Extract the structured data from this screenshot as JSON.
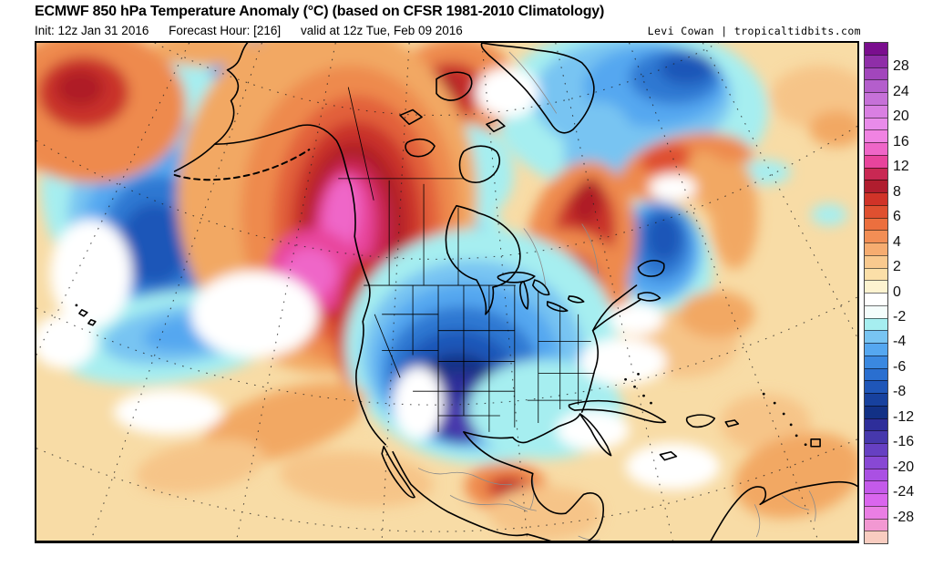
{
  "header": {
    "title": "ECMWF 850 hPa Temperature Anomaly (°C) (based on CFSR 1981-2010 Climatology)",
    "init": "Init: 12z Jan 31 2016",
    "forecast_hour": "Forecast Hour: [216]",
    "valid": "valid at 12z Tue, Feb 09 2016",
    "credit": "Levi Cowan | tropicaltidbits.com"
  },
  "colorbar": {
    "tick_labels": [
      "28",
      "24",
      "20",
      "16",
      "12",
      "8",
      "6",
      "4",
      "2",
      "0",
      "-2",
      "-4",
      "-6",
      "-8",
      "-12",
      "-16",
      "-20",
      "-24",
      "-28"
    ],
    "cell_colors": [
      "#7A0E8E",
      "#8F2EA8",
      "#A246BC",
      "#B45ECC",
      "#C671D8",
      "#D97FE2",
      "#E98BEA",
      "#F083E2",
      "#EF66C8",
      "#E8449C",
      "#C92853",
      "#B01D2E",
      "#D03328",
      "#DF5030",
      "#EC6F3E",
      "#F28E55",
      "#F6AC70",
      "#F9C98E",
      "#FBDFA8",
      "#FDF3D0",
      "#FFFFFF",
      "#F4FDFC",
      "#A6EEF0",
      "#78C4F2",
      "#55A7F0",
      "#3A88E0",
      "#2A6FD0",
      "#1F56B8",
      "#17419E",
      "#123186",
      "#2E2E9A",
      "#4638AC",
      "#6640C2",
      "#8848D4",
      "#AA50E3",
      "#C45AEA",
      "#DA66EE",
      "#EA7EE4",
      "#F298D2",
      "#F8CCC0"
    ]
  },
  "map": {
    "base_color": "#F8DCA6",
    "frame_color": "#000000"
  }
}
